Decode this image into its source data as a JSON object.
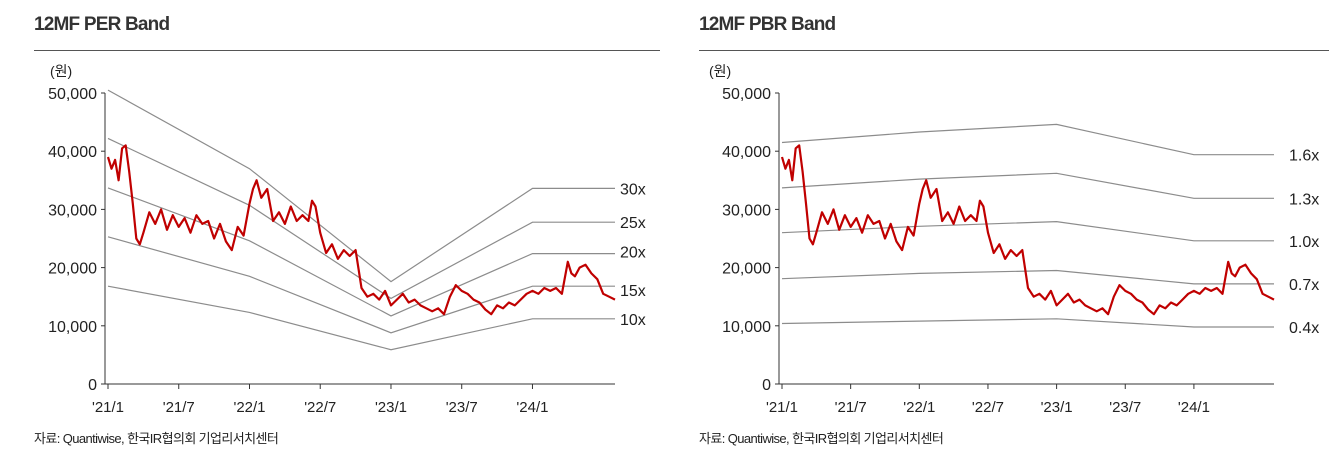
{
  "chart_data": [
    {
      "type": "line",
      "title": "12MF PER Band",
      "unit_label": "(원)",
      "ylim": [
        0,
        50000
      ],
      "yticks": [
        "0",
        "10,000",
        "20,000",
        "30,000",
        "40,000",
        "50,000"
      ],
      "ytick_values": [
        0,
        10000,
        20000,
        30000,
        40000,
        50000
      ],
      "xlim": [
        0,
        43
      ],
      "xticks": [
        "'21/1",
        "'21/7",
        "'22/1",
        "'22/7",
        "'23/1",
        "'23/7",
        "'24/1"
      ],
      "xtick_values": [
        0,
        6,
        12,
        18,
        24,
        30,
        36
      ],
      "band_x": [
        0,
        12,
        24,
        36,
        43
      ],
      "bands": [
        {
          "name": "30x",
          "values": [
            50500,
            37000,
            17600,
            33600,
            33600
          ]
        },
        {
          "name": "25x",
          "values": [
            42200,
            30700,
            14700,
            27800,
            27800
          ]
        },
        {
          "name": "20x",
          "values": [
            33700,
            24600,
            11700,
            22400,
            22400
          ]
        },
        {
          "name": "15x",
          "values": [
            25300,
            18500,
            8800,
            16800,
            16800
          ]
        },
        {
          "name": "10x",
          "values": [
            16800,
            12300,
            5900,
            11200,
            11200
          ]
        }
      ],
      "price_x": [
        0,
        0.3,
        0.6,
        0.9,
        1.2,
        1.5,
        1.8,
        2.1,
        2.4,
        2.7,
        3,
        3.5,
        4,
        4.5,
        5,
        5.5,
        6,
        6.5,
        7,
        7.5,
        8,
        8.5,
        9,
        9.5,
        10,
        10.5,
        11,
        11.5,
        12,
        12.3,
        12.6,
        13,
        13.5,
        14,
        14.5,
        15,
        15.5,
        16,
        16.5,
        17,
        17.3,
        17.6,
        18,
        18.5,
        19,
        19.5,
        20,
        20.5,
        21,
        21.5,
        22,
        22.5,
        23,
        23.5,
        24,
        24.5,
        25,
        25.5,
        26,
        26.5,
        27,
        27.5,
        28,
        28.5,
        29,
        29.5,
        30,
        30.5,
        31,
        31.5,
        32,
        32.5,
        33,
        33.5,
        34,
        34.5,
        35,
        35.5,
        36,
        36.5,
        37,
        37.5,
        38,
        38.5,
        39,
        39.3,
        39.6,
        40,
        40.5,
        41,
        41.5,
        42,
        42.5,
        43
      ],
      "price_values": [
        39000,
        37000,
        38500,
        35000,
        40500,
        41000,
        36500,
        31000,
        25000,
        24000,
        26000,
        29500,
        27500,
        30000,
        26500,
        29000,
        27000,
        28500,
        26000,
        29000,
        27500,
        28000,
        25000,
        27500,
        24500,
        23000,
        27000,
        25500,
        31000,
        33500,
        35000,
        32000,
        33500,
        28000,
        29500,
        27500,
        30500,
        28000,
        29000,
        28000,
        31500,
        30500,
        26000,
        22500,
        24000,
        21500,
        23000,
        22000,
        23000,
        16500,
        15000,
        15500,
        14500,
        16000,
        13500,
        14500,
        15500,
        14000,
        14500,
        13500,
        13000,
        12500,
        13000,
        12000,
        15000,
        17000,
        16000,
        15500,
        14500,
        14000,
        12800,
        12000,
        13500,
        13000,
        14000,
        13500,
        14500,
        15500,
        16000,
        15500,
        16500,
        16000,
        16500,
        15500,
        21000,
        19000,
        18500,
        20000,
        20500,
        19000,
        18000,
        15500,
        15000,
        14500
      ],
      "color_price": "#c00000",
      "color_band": "#8c8c8c"
    },
    {
      "type": "line",
      "title": "12MF PBR Band",
      "unit_label": "(원)",
      "ylim": [
        0,
        50000
      ],
      "yticks": [
        "0",
        "10,000",
        "20,000",
        "30,000",
        "40,000",
        "50,000"
      ],
      "ytick_values": [
        0,
        10000,
        20000,
        30000,
        40000,
        50000
      ],
      "xlim": [
        0,
        43
      ],
      "xticks": [
        "'21/1",
        "'21/7",
        "'22/1",
        "'22/7",
        "'23/1",
        "'23/7",
        "'24/1"
      ],
      "xtick_values": [
        0,
        6,
        12,
        18,
        24,
        30,
        36
      ],
      "band_x": [
        0,
        12,
        24,
        36,
        43
      ],
      "bands": [
        {
          "name": "1.6x",
          "values": [
            41500,
            43300,
            44600,
            39400,
            39400
          ]
        },
        {
          "name": "1.3x",
          "values": [
            33700,
            35200,
            36200,
            31900,
            31900
          ]
        },
        {
          "name": "1.0x",
          "values": [
            26000,
            27100,
            27900,
            24600,
            24600
          ]
        },
        {
          "name": "0.7x",
          "values": [
            18100,
            19000,
            19500,
            17200,
            17200
          ]
        },
        {
          "name": "0.4x",
          "values": [
            10400,
            10800,
            11200,
            9800,
            9800
          ]
        }
      ],
      "price_x": [
        0,
        0.3,
        0.6,
        0.9,
        1.2,
        1.5,
        1.8,
        2.1,
        2.4,
        2.7,
        3,
        3.5,
        4,
        4.5,
        5,
        5.5,
        6,
        6.5,
        7,
        7.5,
        8,
        8.5,
        9,
        9.5,
        10,
        10.5,
        11,
        11.5,
        12,
        12.3,
        12.6,
        13,
        13.5,
        14,
        14.5,
        15,
        15.5,
        16,
        16.5,
        17,
        17.3,
        17.6,
        18,
        18.5,
        19,
        19.5,
        20,
        20.5,
        21,
        21.5,
        22,
        22.5,
        23,
        23.5,
        24,
        24.5,
        25,
        25.5,
        26,
        26.5,
        27,
        27.5,
        28,
        28.5,
        29,
        29.5,
        30,
        30.5,
        31,
        31.5,
        32,
        32.5,
        33,
        33.5,
        34,
        34.5,
        35,
        35.5,
        36,
        36.5,
        37,
        37.5,
        38,
        38.5,
        39,
        39.3,
        39.6,
        40,
        40.5,
        41,
        41.5,
        42,
        42.5,
        43
      ],
      "price_values": [
        39000,
        37000,
        38500,
        35000,
        40500,
        41000,
        36500,
        31000,
        25000,
        24000,
        26000,
        29500,
        27500,
        30000,
        26500,
        29000,
        27000,
        28500,
        26000,
        29000,
        27500,
        28000,
        25000,
        27500,
        24500,
        23000,
        27000,
        25500,
        31000,
        33500,
        35000,
        32000,
        33500,
        28000,
        29500,
        27500,
        30500,
        28000,
        29000,
        28000,
        31500,
        30500,
        26000,
        22500,
        24000,
        21500,
        23000,
        22000,
        23000,
        16500,
        15000,
        15500,
        14500,
        16000,
        13500,
        14500,
        15500,
        14000,
        14500,
        13500,
        13000,
        12500,
        13000,
        12000,
        15000,
        17000,
        16000,
        15500,
        14500,
        14000,
        12800,
        12000,
        13500,
        13000,
        14000,
        13500,
        14500,
        15500,
        16000,
        15500,
        16500,
        16000,
        16500,
        15500,
        21000,
        19000,
        18500,
        20000,
        20500,
        19000,
        18000,
        15500,
        15000,
        14500
      ],
      "color_price": "#c00000",
      "color_band": "#8c8c8c"
    }
  ],
  "source_label": "자료: Quantiwise, 한국IR협의회 기업리서치센터"
}
